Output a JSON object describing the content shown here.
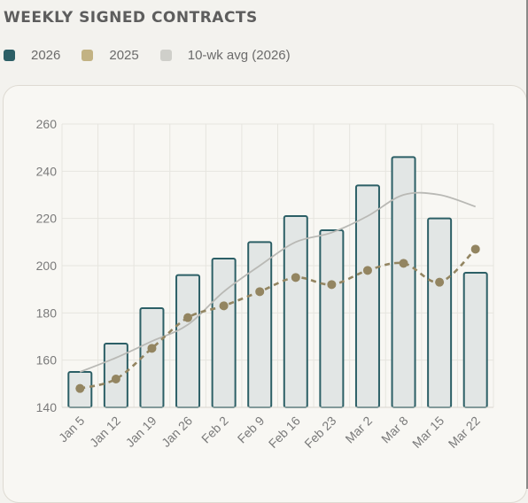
{
  "title": "WEEKLY SIGNED CONTRACTS",
  "legend": [
    {
      "label": "2026",
      "color": "#2c5f66"
    },
    {
      "label": "2025",
      "color": "#c2b283"
    },
    {
      "label": "10-wk avg (2026)",
      "color": "#cfcfca"
    }
  ],
  "chart_data": {
    "type": "bar",
    "categories": [
      "Jan 5",
      "Jan 12",
      "Jan 19",
      "Jan 26",
      "Feb 2",
      "Feb 9",
      "Feb 16",
      "Feb 23",
      "Mar 2",
      "Mar 8",
      "Mar 15",
      "Mar 22"
    ],
    "series": [
      {
        "name": "2026",
        "type": "bar",
        "values": [
          155,
          167,
          182,
          196,
          203,
          210,
          221,
          215,
          234,
          246,
          220,
          197
        ],
        "color": "#2c5f66"
      },
      {
        "name": "2025",
        "type": "line",
        "style": "dashed-dots",
        "values": [
          148,
          152,
          165,
          178,
          183,
          189,
          195,
          192,
          198,
          201,
          193,
          207
        ],
        "color": "#938561"
      },
      {
        "name": "10-wk avg (2026)",
        "type": "line",
        "values": [
          155,
          161,
          168,
          175,
          189,
          200,
          210,
          214,
          221,
          230,
          230,
          225
        ],
        "color": "#b9b9b5"
      }
    ],
    "yticks": [
      140,
      160,
      180,
      200,
      220,
      240,
      260
    ],
    "ylim": [
      140,
      260
    ],
    "grid": true,
    "legend_position": "top-left"
  }
}
